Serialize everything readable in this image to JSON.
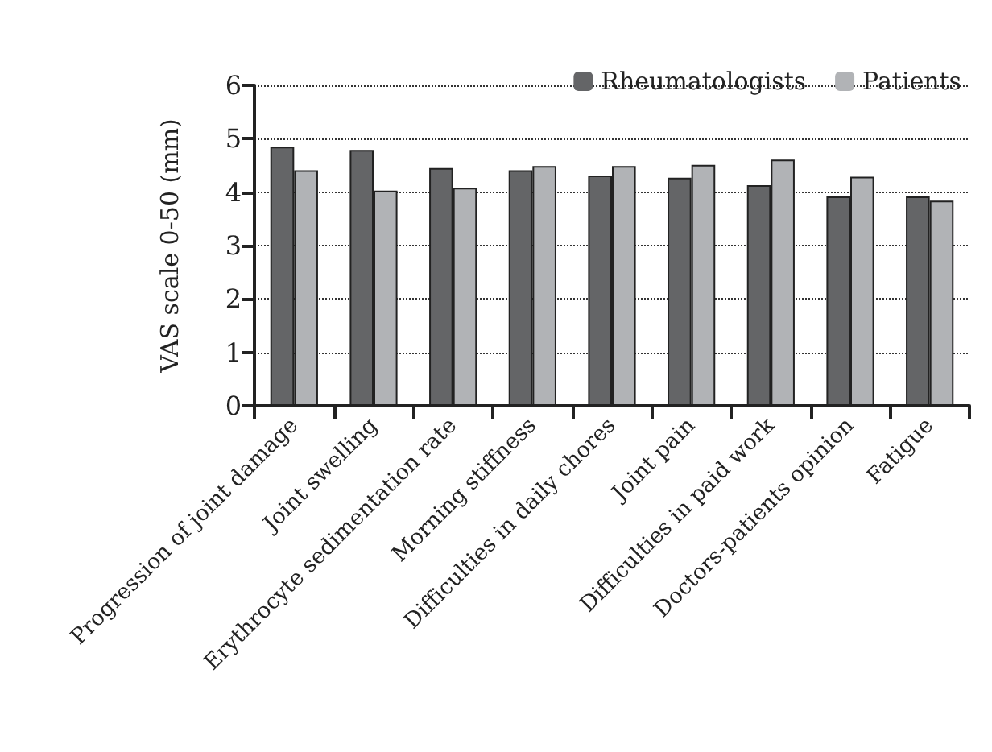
{
  "chart_data": {
    "type": "bar",
    "ylabel": "VAS scale 0-50 (mm)",
    "categories": [
      "Progression of joint damage",
      "Joint swelling",
      "Erythrocyte sedimentation rate",
      "Morning stiffness",
      "Difficulties in daily chores",
      "Joint pain",
      "Difficulties in paid work",
      "Doctors-patients opinion",
      "Fatigue"
    ],
    "series": [
      {
        "name": "Rheumatologists",
        "color": "#646567",
        "values": [
          4.85,
          4.79,
          4.45,
          4.41,
          4.31,
          4.27,
          4.13,
          3.92,
          3.92
        ]
      },
      {
        "name": "Patients",
        "color": "#b1b3b6",
        "values": [
          4.41,
          4.03,
          4.08,
          4.49,
          4.49,
          4.51,
          4.61,
          4.29,
          3.84
        ]
      }
    ],
    "ylim": [
      0,
      6
    ],
    "yticks": [
      0,
      1,
      2,
      3,
      4,
      5,
      6
    ],
    "grid": "y",
    "legend": "top right"
  }
}
